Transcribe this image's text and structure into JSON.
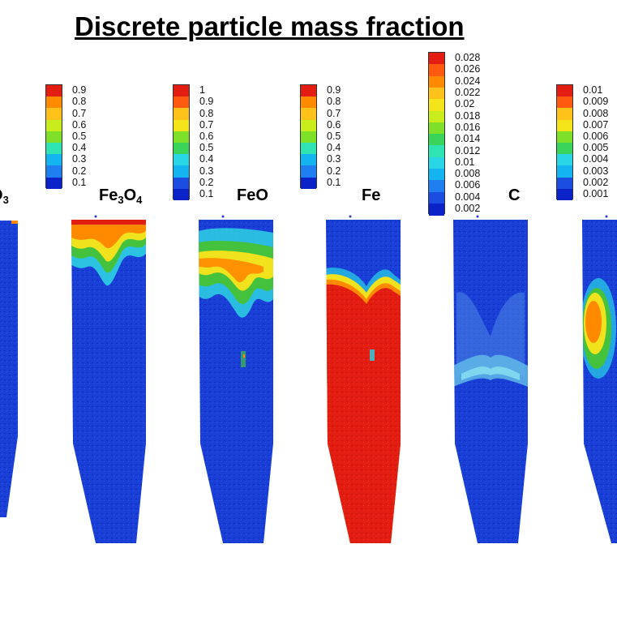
{
  "title": "Discrete particle mass fraction",
  "panels": [
    {
      "label_main": "O",
      "label_sub": "3",
      "label_pre": "",
      "label_sub2": "",
      "label_left": -14,
      "colorbar": [
        "0.9",
        "0.8",
        "0.7",
        "0.6",
        "0.5",
        "0.4",
        "0.3",
        "0.2",
        "0.1"
      ],
      "fill": "fe2o3"
    },
    {
      "label_pre": "Fe",
      "label_sub": "3",
      "label_main": "O",
      "label_sub2": "4",
      "fill": "fe3o4",
      "colorbar": [
        "0.9",
        "0.8",
        "0.7",
        "0.6",
        "0.5",
        "0.4",
        "0.3",
        "0.2",
        "0.1"
      ]
    },
    {
      "label_pre": "FeO",
      "label_sub": "",
      "label_main": "",
      "label_sub2": "",
      "fill": "feo",
      "colorbar": [
        "1",
        "0.9",
        "0.8",
        "0.7",
        "0.6",
        "0.5",
        "0.4",
        "0.3",
        "0.2",
        "0.1"
      ]
    },
    {
      "label_pre": "Fe",
      "label_sub": "",
      "label_main": "",
      "label_sub2": "",
      "fill": "fe",
      "colorbar": [
        "0.9",
        "0.8",
        "0.7",
        "0.6",
        "0.5",
        "0.4",
        "0.3",
        "0.2",
        "0.1"
      ]
    },
    {
      "label_pre": "C",
      "label_sub": "",
      "label_main": "",
      "label_sub2": "",
      "fill": "c",
      "colorbar": [
        "0.028",
        "0.026",
        "0.024",
        "0.022",
        "0.02",
        "0.018",
        "0.016",
        "0.014",
        "0.012",
        "0.01",
        "0.008",
        "0.006",
        "0.004",
        "0.002"
      ]
    },
    {
      "label_pre": "",
      "label_sub": "",
      "label_main": "",
      "label_sub2": "",
      "fill": "sixth",
      "colorbar": [
        "0.01",
        "0.009",
        "0.008",
        "0.007",
        "0.006",
        "0.005",
        "0.004",
        "0.003",
        "0.002",
        "0.001"
      ]
    }
  ],
  "colors": {
    "blue": "#1a3fd6",
    "deep_blue": "#0a22c8",
    "red": "#e41d12",
    "orange": "#ff8a00",
    "yellow": "#f3e51a",
    "green": "#37c23a",
    "cyan": "#29d6e6"
  }
}
